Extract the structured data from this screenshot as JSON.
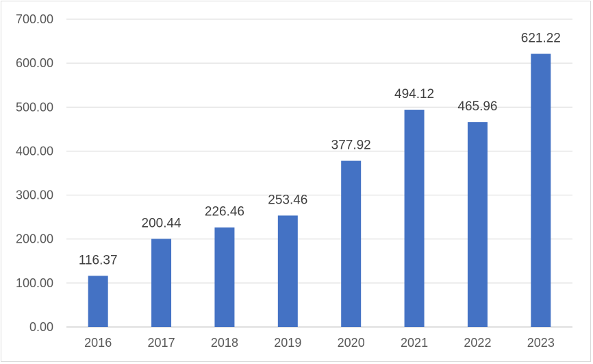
{
  "chart_data": {
    "type": "bar",
    "categories": [
      "2016",
      "2017",
      "2018",
      "2019",
      "2020",
      "2021",
      "2022",
      "2023"
    ],
    "values": [
      116.37,
      200.44,
      226.46,
      253.46,
      377.92,
      494.12,
      465.96,
      621.22
    ],
    "value_labels": [
      "116.37",
      "200.44",
      "226.46",
      "253.46",
      "377.92",
      "494.12",
      "465.96",
      "621.22"
    ],
    "y_ticks": [
      "0.00",
      "100.00",
      "200.00",
      "300.00",
      "400.00",
      "500.00",
      "600.00",
      "700.00"
    ],
    "ylim": [
      0,
      700
    ],
    "title": "",
    "xlabel": "",
    "ylabel": "",
    "grid": true,
    "legend": "none",
    "bar_color": "#4472c4",
    "grid_color": "#d9d9d9"
  }
}
